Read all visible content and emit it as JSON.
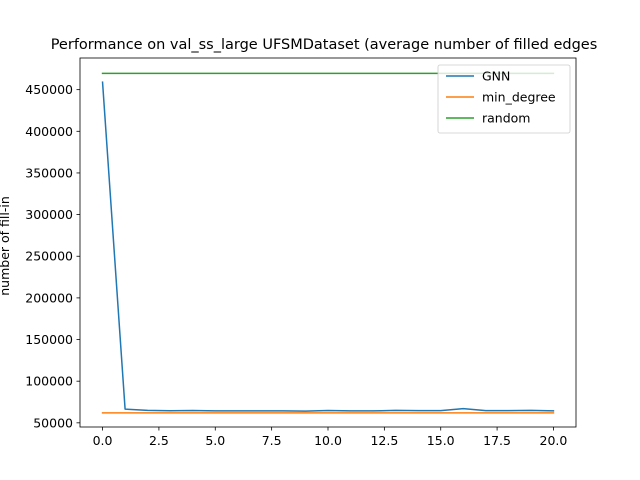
{
  "chart_data": {
    "type": "line",
    "title": "Performance on val_ss_large UFSMDataset (average number of filled edges",
    "xlabel": "",
    "ylabel": "number of fill-in",
    "xlim": [
      -1.0,
      21.0
    ],
    "ylim": [
      45000,
      488000
    ],
    "xticks": [
      0.0,
      2.5,
      5.0,
      7.5,
      10.0,
      12.5,
      15.0,
      17.5,
      20.0
    ],
    "xtick_labels": [
      "0.0",
      "2.5",
      "5.0",
      "7.5",
      "10.0",
      "12.5",
      "15.0",
      "17.5",
      "20.0"
    ],
    "yticks": [
      50000,
      100000,
      150000,
      200000,
      250000,
      300000,
      350000,
      400000,
      450000
    ],
    "ytick_labels": [
      "50000",
      "100000",
      "150000",
      "200000",
      "250000",
      "300000",
      "350000",
      "400000",
      "450000"
    ],
    "legend_position": "top-right",
    "grid": false,
    "x": [
      0,
      1,
      2,
      3,
      4,
      5,
      6,
      7,
      8,
      9,
      10,
      11,
      12,
      13,
      14,
      15,
      16,
      17,
      18,
      19,
      20
    ],
    "series": [
      {
        "name": "GNN",
        "color": "#1f77b4",
        "values": [
          459000,
          66500,
          65000,
          64500,
          64800,
          64300,
          64300,
          64300,
          64400,
          64000,
          64800,
          64300,
          64300,
          65000,
          64600,
          64600,
          67000,
          64600,
          64600,
          64900,
          64300
        ]
      },
      {
        "name": "min_degree",
        "color": "#ff7f0e",
        "values": [
          62000,
          62000,
          62000,
          62000,
          62000,
          62000,
          62000,
          62000,
          62000,
          62000,
          62000,
          62000,
          62000,
          62000,
          62000,
          62000,
          62000,
          62000,
          62000,
          62000,
          62000
        ]
      },
      {
        "name": "random",
        "color": "#2ca02c",
        "values": [
          469500,
          469500,
          469500,
          469500,
          469500,
          469500,
          469500,
          469500,
          469500,
          469500,
          469500,
          469500,
          469500,
          469500,
          469500,
          469500,
          469500,
          469500,
          469500,
          469500,
          469500
        ]
      }
    ]
  }
}
